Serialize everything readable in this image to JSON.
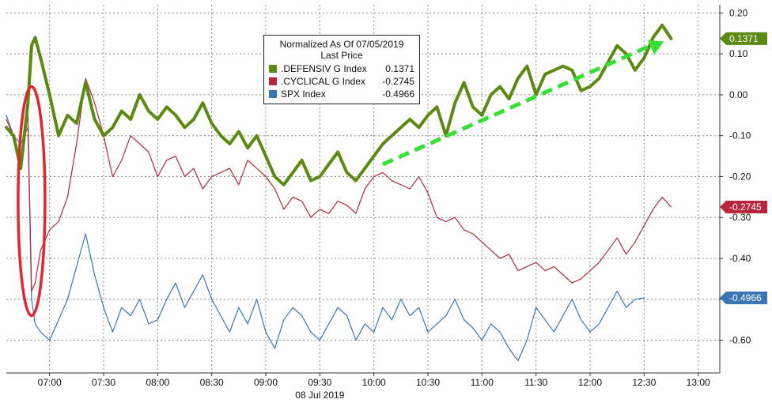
{
  "chart_data": {
    "type": "line",
    "title": "Normalized As Of 07/05/2019",
    "subtitle": "Last Price",
    "xlabel": "08 Jul 2019",
    "x_ticks": [
      "07:00",
      "07:30",
      "08:00",
      "08:30",
      "09:00",
      "09:30",
      "10:00",
      "10:30",
      "11:00",
      "11:30",
      "12:00",
      "12:30",
      "13:00"
    ],
    "y_ticks": [
      "0.20",
      "0.10",
      "0.00",
      "-0.10",
      "-0.20",
      "-0.30",
      "-0.40",
      "-0.50",
      "-0.60"
    ],
    "ylim": [
      -0.68,
      0.22
    ],
    "xlim": [
      "06:36",
      "13:12"
    ],
    "grid": true,
    "y_axis_side": "right",
    "legend_position": "top-center",
    "series": [
      {
        "name": ".DEFENSIV G Index",
        "last_value": "0.1371",
        "color": "#5a8a12",
        "x": [
          "06:36",
          "06:40",
          "06:44",
          "06:48",
          "06:50",
          "06:52",
          "06:55",
          "07:00",
          "07:05",
          "07:10",
          "07:15",
          "07:20",
          "07:25",
          "07:30",
          "07:35",
          "07:40",
          "07:45",
          "07:50",
          "07:55",
          "08:00",
          "08:05",
          "08:10",
          "08:15",
          "08:20",
          "08:25",
          "08:30",
          "08:35",
          "08:40",
          "08:45",
          "08:50",
          "08:55",
          "09:00",
          "09:05",
          "09:10",
          "09:15",
          "09:20",
          "09:25",
          "09:30",
          "09:35",
          "09:40",
          "09:45",
          "09:50",
          "09:55",
          "10:00",
          "10:05",
          "10:10",
          "10:15",
          "10:20",
          "10:25",
          "10:30",
          "10:35",
          "10:40",
          "10:45",
          "10:50",
          "10:55",
          "11:00",
          "11:05",
          "11:10",
          "11:15",
          "11:20",
          "11:25",
          "11:30",
          "11:35",
          "11:40",
          "11:45",
          "11:50",
          "11:55",
          "12:00",
          "12:05",
          "12:10",
          "12:15",
          "12:20",
          "12:25",
          "12:30",
          "12:35",
          "12:40",
          "12:45"
        ],
        "values": [
          -0.08,
          -0.1,
          -0.18,
          -0.02,
          0.12,
          0.14,
          0.09,
          0.0,
          -0.1,
          -0.05,
          -0.07,
          0.03,
          -0.06,
          -0.1,
          -0.08,
          -0.04,
          -0.06,
          0.0,
          -0.04,
          -0.06,
          -0.03,
          -0.05,
          -0.08,
          -0.06,
          -0.02,
          -0.07,
          -0.1,
          -0.12,
          -0.09,
          -0.13,
          -0.1,
          -0.15,
          -0.2,
          -0.22,
          -0.19,
          -0.16,
          -0.21,
          -0.2,
          -0.17,
          -0.14,
          -0.19,
          -0.21,
          -0.18,
          -0.15,
          -0.12,
          -0.1,
          -0.08,
          -0.06,
          -0.08,
          -0.05,
          -0.03,
          -0.1,
          -0.02,
          0.03,
          -0.03,
          -0.05,
          0.0,
          0.02,
          -0.01,
          0.04,
          0.07,
          0.0,
          0.05,
          0.06,
          0.07,
          0.06,
          0.01,
          0.02,
          0.04,
          0.08,
          0.12,
          0.1,
          0.06,
          0.09,
          0.14,
          0.17,
          0.1371
        ]
      },
      {
        "name": ".CYCLICAL G Index",
        "last_value": "-0.2745",
        "color": "#b8263b",
        "x": [
          "06:36",
          "06:40",
          "06:44",
          "06:48",
          "06:50",
          "06:52",
          "06:55",
          "07:00",
          "07:05",
          "07:10",
          "07:15",
          "07:20",
          "07:25",
          "07:30",
          "07:35",
          "07:40",
          "07:45",
          "07:50",
          "07:55",
          "08:00",
          "08:05",
          "08:10",
          "08:15",
          "08:20",
          "08:25",
          "08:30",
          "08:35",
          "08:40",
          "08:45",
          "08:50",
          "08:55",
          "09:00",
          "09:05",
          "09:10",
          "09:15",
          "09:20",
          "09:25",
          "09:30",
          "09:35",
          "09:40",
          "09:45",
          "09:50",
          "09:55",
          "10:00",
          "10:05",
          "10:10",
          "10:15",
          "10:20",
          "10:25",
          "10:30",
          "10:35",
          "10:40",
          "10:45",
          "10:50",
          "10:55",
          "11:00",
          "11:05",
          "11:10",
          "11:15",
          "11:20",
          "11:25",
          "11:30",
          "11:35",
          "11:40",
          "11:45",
          "11:50",
          "11:55",
          "12:00",
          "12:05",
          "12:10",
          "12:15",
          "12:20",
          "12:25",
          "12:30",
          "12:35",
          "12:40",
          "12:45"
        ],
        "values": [
          -0.06,
          -0.1,
          -0.16,
          -0.05,
          -0.48,
          -0.46,
          -0.38,
          -0.33,
          -0.31,
          -0.25,
          -0.12,
          0.04,
          -0.02,
          -0.1,
          -0.2,
          -0.16,
          -0.1,
          -0.12,
          -0.14,
          -0.2,
          -0.16,
          -0.15,
          -0.2,
          -0.18,
          -0.23,
          -0.2,
          -0.19,
          -0.18,
          -0.22,
          -0.16,
          -0.18,
          -0.2,
          -0.23,
          -0.28,
          -0.25,
          -0.26,
          -0.3,
          -0.28,
          -0.29,
          -0.26,
          -0.27,
          -0.29,
          -0.23,
          -0.2,
          -0.19,
          -0.21,
          -0.22,
          -0.23,
          -0.2,
          -0.24,
          -0.3,
          -0.31,
          -0.3,
          -0.33,
          -0.34,
          -0.36,
          -0.38,
          -0.4,
          -0.39,
          -0.43,
          -0.42,
          -0.41,
          -0.43,
          -0.42,
          -0.44,
          -0.46,
          -0.45,
          -0.43,
          -0.41,
          -0.38,
          -0.35,
          -0.39,
          -0.36,
          -0.32,
          -0.28,
          -0.25,
          -0.2745
        ]
      },
      {
        "name": "SPX Index",
        "last_value": "-0.4966",
        "color": "#3a75b5",
        "x": [
          "06:36",
          "06:40",
          "06:44",
          "06:48",
          "06:50",
          "06:52",
          "06:55",
          "07:00",
          "07:05",
          "07:10",
          "07:15",
          "07:20",
          "07:25",
          "07:30",
          "07:35",
          "07:40",
          "07:45",
          "07:50",
          "07:55",
          "08:00",
          "08:05",
          "08:10",
          "08:15",
          "08:20",
          "08:25",
          "08:30",
          "08:35",
          "08:40",
          "08:45",
          "08:50",
          "08:55",
          "09:00",
          "09:05",
          "09:10",
          "09:15",
          "09:20",
          "09:25",
          "09:30",
          "09:35",
          "09:40",
          "09:45",
          "09:50",
          "09:55",
          "10:00",
          "10:05",
          "10:10",
          "10:15",
          "10:20",
          "10:25",
          "10:30",
          "10:35",
          "10:40",
          "10:45",
          "10:50",
          "10:55",
          "11:00",
          "11:05",
          "11:10",
          "11:15",
          "11:20",
          "11:25",
          "11:30",
          "11:35",
          "11:40",
          "11:45",
          "11:50",
          "11:55",
          "12:00",
          "12:05",
          "12:10",
          "12:15",
          "12:20",
          "12:25",
          "12:30"
        ],
        "values": [
          -0.05,
          -0.1,
          -0.12,
          -0.08,
          -0.5,
          -0.56,
          -0.58,
          -0.6,
          -0.55,
          -0.5,
          -0.42,
          -0.34,
          -0.44,
          -0.52,
          -0.58,
          -0.52,
          -0.54,
          -0.5,
          -0.56,
          -0.55,
          -0.5,
          -0.46,
          -0.52,
          -0.48,
          -0.44,
          -0.5,
          -0.54,
          -0.58,
          -0.52,
          -0.56,
          -0.5,
          -0.58,
          -0.62,
          -0.55,
          -0.52,
          -0.54,
          -0.58,
          -0.6,
          -0.56,
          -0.52,
          -0.54,
          -0.6,
          -0.56,
          -0.58,
          -0.52,
          -0.55,
          -0.5,
          -0.54,
          -0.52,
          -0.58,
          -0.56,
          -0.54,
          -0.5,
          -0.55,
          -0.57,
          -0.6,
          -0.56,
          -0.58,
          -0.62,
          -0.65,
          -0.6,
          -0.52,
          -0.55,
          -0.58,
          -0.54,
          -0.5,
          -0.55,
          -0.58,
          -0.56,
          -0.52,
          -0.48,
          -0.52,
          -0.5,
          -0.4966
        ]
      }
    ]
  }
}
